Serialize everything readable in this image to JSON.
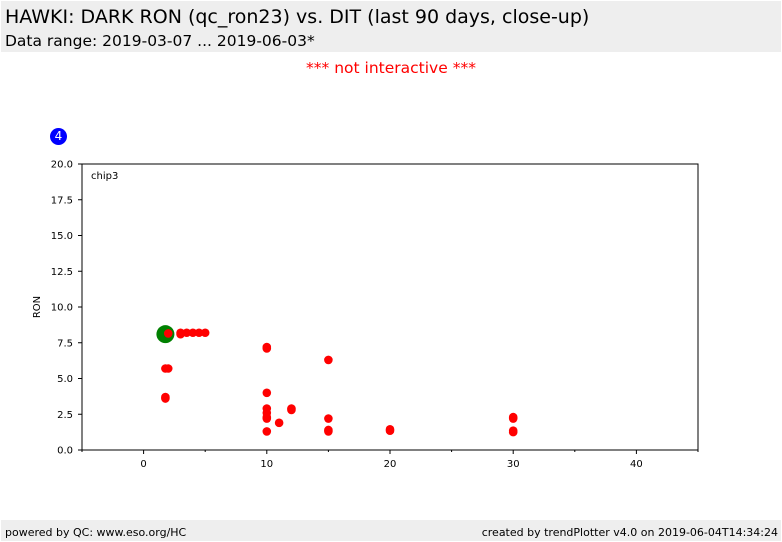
{
  "header": {
    "title": "HAWKI: DARK RON (qc_ron23) vs. DIT (last 90 days, close-up)",
    "subtitle": "Data range: 2019-03-07 ... 2019-06-03*"
  },
  "notice": "*** not interactive ***",
  "badge": "4",
  "footer": {
    "left": "powered by QC: www.eso.org/HC",
    "right": "created by trendPlotter v4.0 on 2019-06-04T14:34:24"
  },
  "colors": {
    "points": "#ff0000",
    "highlight": "#008000",
    "badge": "#0000ff",
    "notice": "#ff0000"
  },
  "chart_data": {
    "type": "scatter",
    "panel_label": "chip3",
    "xlabel": "",
    "ylabel": "RON",
    "xlim": [
      -5,
      45
    ],
    "ylim": [
      0,
      20
    ],
    "x_ticks": [
      0,
      10,
      20,
      30,
      40
    ],
    "y_ticks": [
      "0.0",
      "2.5",
      "5.0",
      "7.5",
      "10.0",
      "12.5",
      "15.0",
      "17.5",
      "20.0"
    ],
    "grid": false,
    "series": [
      {
        "points": [
          [
            1.77,
            5.7
          ],
          [
            2.0,
            5.7
          ],
          [
            1.77,
            3.7
          ],
          [
            1.77,
            3.6
          ],
          [
            2.0,
            8.15
          ],
          [
            3.0,
            8.2
          ],
          [
            3.0,
            8.1
          ],
          [
            3.5,
            8.2
          ],
          [
            4.0,
            8.2
          ],
          [
            4.5,
            8.2
          ],
          [
            5.0,
            8.2
          ],
          [
            10,
            7.2
          ],
          [
            10,
            7.1
          ],
          [
            10,
            4.0
          ],
          [
            10,
            2.9
          ],
          [
            10,
            2.6
          ],
          [
            10,
            2.3
          ],
          [
            10,
            2.2
          ],
          [
            10,
            1.3
          ],
          [
            11,
            1.9
          ],
          [
            12,
            2.9
          ],
          [
            12,
            2.8
          ],
          [
            15,
            6.3
          ],
          [
            15,
            2.2
          ],
          [
            15,
            1.4
          ],
          [
            15,
            1.3
          ],
          [
            20,
            1.45
          ],
          [
            20,
            1.35
          ],
          [
            30,
            2.3
          ],
          [
            30,
            2.2
          ],
          [
            30,
            1.35
          ],
          [
            30,
            1.25
          ]
        ]
      },
      {
        "points": [
          [
            1.77,
            8.1
          ]
        ]
      }
    ]
  }
}
